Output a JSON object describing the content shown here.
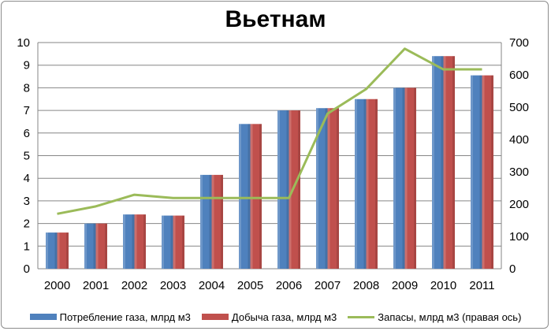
{
  "chart_data": {
    "type": "bar",
    "title": "Вьетнам",
    "categories": [
      "2000",
      "2001",
      "2002",
      "2003",
      "2004",
      "2005",
      "2006",
      "2007",
      "2008",
      "2009",
      "2010",
      "2011"
    ],
    "series": [
      {
        "name": "Потребление газа, млрд м3",
        "kind": "bar",
        "axis": "left",
        "color": "#4f81bd",
        "values": [
          1.6,
          2.0,
          2.4,
          2.35,
          4.15,
          6.4,
          7.0,
          7.1,
          7.5,
          8.0,
          9.4,
          8.55
        ]
      },
      {
        "name": "Добыча газа, млрд м3",
        "kind": "bar",
        "axis": "left",
        "color": "#c0504d",
        "values": [
          1.6,
          2.0,
          2.4,
          2.35,
          4.15,
          6.4,
          7.0,
          7.1,
          7.5,
          8.0,
          9.4,
          8.55
        ]
      },
      {
        "name": "Запасы, млрд м3 (правая ось)",
        "kind": "line",
        "axis": "right",
        "color": "#9bbb59",
        "values": [
          170,
          193,
          229,
          219,
          219,
          219,
          219,
          480,
          556,
          681,
          617,
          617
        ]
      }
    ],
    "y_left": {
      "min": 0,
      "max": 10,
      "ticks": [
        "0",
        "1",
        "2",
        "3",
        "4",
        "5",
        "6",
        "7",
        "8",
        "9",
        "10"
      ]
    },
    "y_right": {
      "min": 0,
      "max": 700,
      "ticks": [
        "0",
        "100",
        "200",
        "300",
        "400",
        "500",
        "600",
        "700"
      ]
    },
    "grid": true,
    "legend_position": "bottom"
  }
}
